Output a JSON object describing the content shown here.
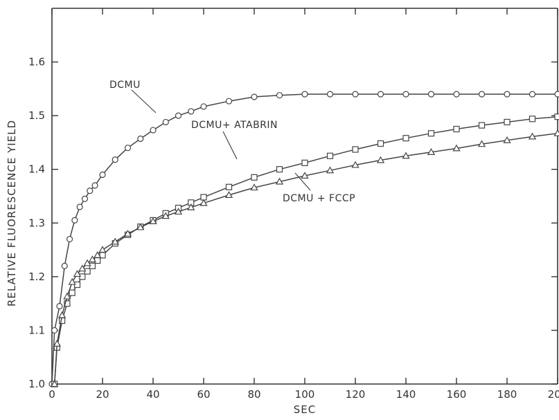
{
  "chart_data": {
    "type": "line",
    "title": "",
    "xlabel": "SEC",
    "ylabel": "RELATIVE FLUORESCENCE YIELD",
    "xlim": [
      0,
      200
    ],
    "ylim": [
      1.0,
      1.7
    ],
    "xticks": [
      0,
      20,
      40,
      60,
      80,
      100,
      120,
      140,
      160,
      180,
      200
    ],
    "xtick_labels": [
      "0",
      "20",
      "40",
      "60",
      "80",
      "100",
      "120",
      "140",
      "160",
      "180",
      "200"
    ],
    "yticks": [
      1.0,
      1.1,
      1.2,
      1.3,
      1.4,
      1.5,
      1.6
    ],
    "ytick_labels": [
      "1.0",
      "1.1",
      "1.2",
      "1.3",
      "1.4",
      "1.5",
      "1.6"
    ],
    "grid": false,
    "series": [
      {
        "name": "DCMU",
        "marker": "circle",
        "x": [
          0,
          1,
          3,
          5,
          7,
          9,
          11,
          13,
          15,
          17,
          20,
          25,
          30,
          35,
          40,
          45,
          50,
          55,
          60,
          70,
          80,
          90,
          100,
          110,
          120,
          130,
          140,
          150,
          160,
          170,
          180,
          190,
          200
        ],
        "y": [
          1.0,
          1.1,
          1.145,
          1.22,
          1.27,
          1.305,
          1.33,
          1.345,
          1.36,
          1.37,
          1.39,
          1.418,
          1.44,
          1.457,
          1.473,
          1.488,
          1.5,
          1.508,
          1.517,
          1.527,
          1.535,
          1.538,
          1.54,
          1.54,
          1.54,
          1.54,
          1.54,
          1.54,
          1.54,
          1.54,
          1.54,
          1.54,
          1.54
        ]
      },
      {
        "name": "DCMU+ ATABRIN",
        "marker": "square",
        "x": [
          1,
          2,
          4,
          6,
          8,
          10,
          12,
          14,
          16,
          18,
          20,
          25,
          30,
          35,
          40,
          45,
          50,
          55,
          60,
          70,
          80,
          90,
          100,
          110,
          120,
          130,
          140,
          150,
          160,
          170,
          180,
          190,
          200
        ],
        "y": [
          1.0,
          1.068,
          1.118,
          1.15,
          1.17,
          1.185,
          1.2,
          1.21,
          1.22,
          1.23,
          1.24,
          1.262,
          1.278,
          1.293,
          1.305,
          1.318,
          1.328,
          1.338,
          1.348,
          1.367,
          1.385,
          1.4,
          1.412,
          1.425,
          1.437,
          1.448,
          1.458,
          1.467,
          1.475,
          1.482,
          1.488,
          1.494,
          1.498
        ]
      },
      {
        "name": "DCMU + FCCP",
        "marker": "triangle",
        "x": [
          1,
          2,
          4,
          6,
          8,
          10,
          12,
          14,
          16,
          18,
          20,
          25,
          30,
          35,
          40,
          45,
          50,
          55,
          60,
          70,
          80,
          90,
          100,
          110,
          120,
          130,
          140,
          150,
          160,
          170,
          180,
          190,
          200
        ],
        "y": [
          1.0,
          1.075,
          1.128,
          1.163,
          1.19,
          1.205,
          1.215,
          1.225,
          1.232,
          1.24,
          1.25,
          1.265,
          1.28,
          1.292,
          1.303,
          1.313,
          1.321,
          1.329,
          1.337,
          1.352,
          1.366,
          1.377,
          1.388,
          1.398,
          1.408,
          1.417,
          1.425,
          1.432,
          1.439,
          1.447,
          1.454,
          1.461,
          1.467
        ]
      }
    ],
    "annotations": [
      {
        "text": "DCMU",
        "series": 0
      },
      {
        "text": "DCMU+ ATABRIN",
        "series": 1
      },
      {
        "text": "DCMU + FCCP",
        "series": 2
      }
    ]
  }
}
